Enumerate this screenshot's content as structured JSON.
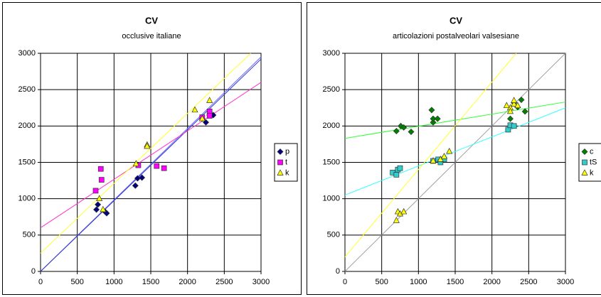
{
  "chart_data": [
    {
      "type": "scatter",
      "title": "CV",
      "subtitle": "occlusive italiane",
      "xlim": [
        0,
        3000
      ],
      "ylim": [
        0,
        3000
      ],
      "xticks": [
        0,
        500,
        1000,
        1500,
        2000,
        2500,
        3000
      ],
      "yticks": [
        0,
        500,
        1000,
        1500,
        2000,
        2500,
        3000
      ],
      "grid": true,
      "legend": "right",
      "reference_line": {
        "x": [
          0,
          3000
        ],
        "values": [
          0,
          2950
        ],
        "color": "#6666ff"
      },
      "series": [
        {
          "name": "p",
          "color": "#000080",
          "marker": "diamond",
          "x": [
            760,
            780,
            880,
            900,
            1290,
            1320,
            1380,
            2200,
            2250,
            2300,
            2350
          ],
          "values": [
            850,
            920,
            820,
            800,
            1180,
            1280,
            1290,
            2100,
            2050,
            2150,
            2150
          ],
          "trendline": {
            "x": [
              0,
              3000
            ],
            "values": [
              0,
              2920
            ],
            "color": "#3333cc"
          }
        },
        {
          "name": "t",
          "color": "#ff00ff",
          "marker": "square",
          "x": [
            750,
            820,
            830,
            1330,
            1580,
            1680,
            2200,
            2300,
            2300
          ],
          "values": [
            1110,
            1410,
            1260,
            1460,
            1450,
            1420,
            2120,
            2200,
            2140
          ],
          "trendline": {
            "x": [
              0,
              3000
            ],
            "values": [
              600,
              2600
            ],
            "color": "#ff33cc"
          }
        },
        {
          "name": "k",
          "color": "#ffff00",
          "marker": "triangle",
          "x": [
            800,
            850,
            1300,
            1450,
            1450,
            2100,
            2200,
            2300
          ],
          "values": [
            1000,
            850,
            1480,
            1740,
            1720,
            2220,
            2100,
            2350
          ],
          "trendline": {
            "x": [
              0,
              2860
            ],
            "values": [
              250,
              3000
            ],
            "color": "#ffff33"
          }
        }
      ]
    },
    {
      "type": "scatter",
      "title": "CV",
      "subtitle": "articolazioni postalveolari valsesiane",
      "xlim": [
        0,
        3000
      ],
      "ylim": [
        0,
        3000
      ],
      "xticks": [
        0,
        500,
        1000,
        1500,
        2000,
        2500,
        3000
      ],
      "yticks": [
        0,
        500,
        1000,
        1500,
        2000,
        2500,
        3000
      ],
      "grid": true,
      "legend": "right",
      "reference_line": {
        "x": [
          0,
          3000
        ],
        "values": [
          0,
          3000
        ],
        "color": "#a0a0a0"
      },
      "series": [
        {
          "name": "c",
          "color": "#008000",
          "marker": "diamond",
          "x": [
            700,
            760,
            800,
            900,
            1180,
            1200,
            1200,
            1260,
            2250,
            2300,
            2350,
            2400,
            2450
          ],
          "values": [
            1930,
            2000,
            1980,
            1920,
            2220,
            2050,
            2100,
            2100,
            2100,
            2320,
            2260,
            2360,
            2200
          ],
          "trendline": {
            "x": [
              0,
              3000
            ],
            "values": [
              1830,
              2330
            ],
            "color": "#33ff33"
          }
        },
        {
          "name": "tS",
          "color": "#33cccc",
          "marker": "square",
          "x": [
            650,
            700,
            720,
            750,
            1200,
            1270,
            1300,
            1350,
            2220,
            2250,
            2300
          ],
          "values": [
            1360,
            1330,
            1400,
            1420,
            1520,
            1540,
            1500,
            1540,
            1950,
            2010,
            2000
          ],
          "trendline": {
            "x": [
              0,
              3000
            ],
            "values": [
              1050,
              2250
            ],
            "color": "#33ffff"
          }
        },
        {
          "name": "k",
          "color": "#ffff00",
          "marker": "triangle",
          "x": [
            700,
            720,
            750,
            800,
            1200,
            1300,
            1350,
            1420,
            2250,
            2300,
            2300,
            2250,
            2350,
            2200
          ],
          "values": [
            700,
            820,
            790,
            820,
            1520,
            1540,
            1580,
            1650,
            2250,
            2300,
            2350,
            2200,
            2280,
            2280
          ],
          "trendline": {
            "x": [
              0,
              2330
            ],
            "values": [
              200,
              3000
            ],
            "color": "#ffff33"
          }
        }
      ]
    }
  ]
}
